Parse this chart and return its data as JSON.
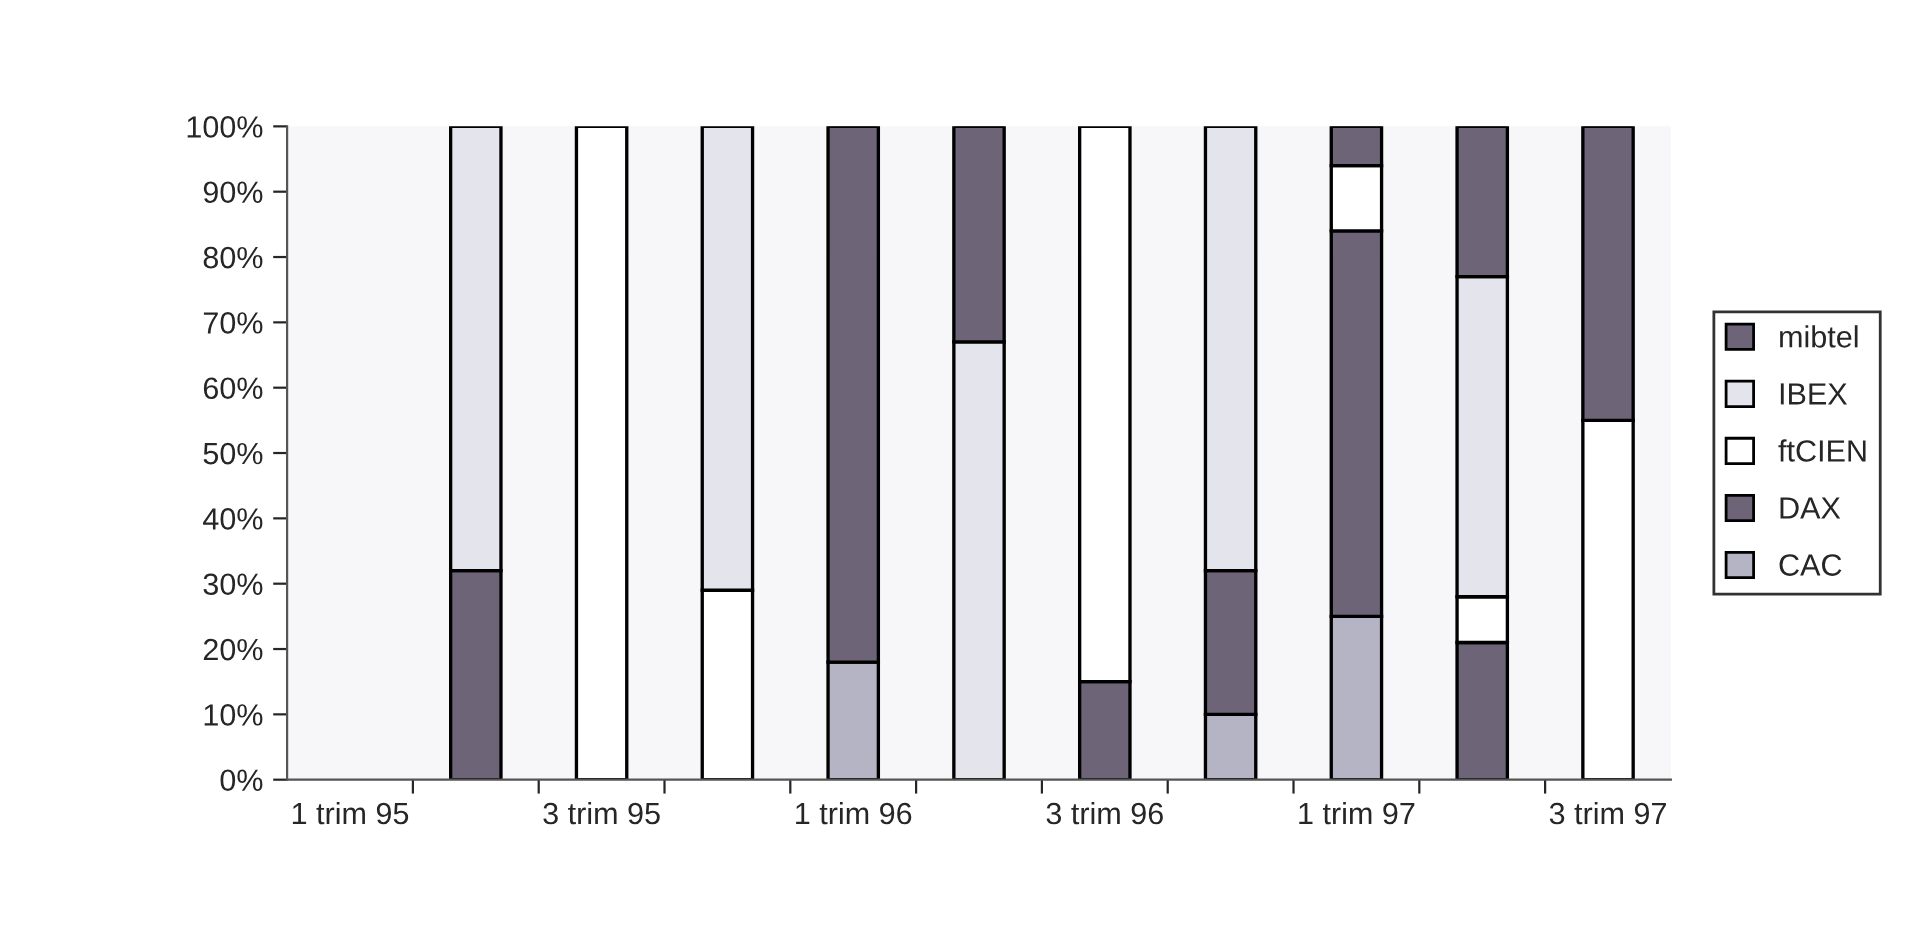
{
  "chart_data": {
    "type": "bar",
    "stacked": true,
    "categories": [
      "1 trim 95",
      null,
      "3 trim 95",
      null,
      "1 trim 96",
      null,
      "3 trim 96",
      null,
      "1 trim 97",
      null,
      "3 trim 97"
    ],
    "series": [
      {
        "name": "CAC",
        "color": "#b4b4c4",
        "values": [
          null,
          null,
          null,
          null,
          18,
          null,
          null,
          10,
          25,
          null,
          null
        ]
      },
      {
        "name": "DAX",
        "color": "#6e6478",
        "values": [
          null,
          32,
          null,
          null,
          82,
          null,
          15,
          22,
          59,
          21,
          null
        ]
      },
      {
        "name": "ftCIEN",
        "color": "#ffffff",
        "values": [
          null,
          null,
          100,
          29,
          null,
          null,
          85,
          null,
          10,
          7,
          55
        ]
      },
      {
        "name": "IBEX",
        "color": "#e4e4ec",
        "values": [
          null,
          68,
          null,
          71,
          null,
          67,
          null,
          68,
          null,
          49,
          null
        ]
      },
      {
        "name": "mibtel",
        "color": "#6e6478",
        "values": [
          null,
          null,
          null,
          null,
          null,
          33,
          null,
          null,
          6,
          23,
          45
        ]
      }
    ],
    "ylim": [
      0,
      100
    ],
    "yticks": [
      {
        "value": 0,
        "label": "0%"
      },
      {
        "value": 10,
        "label": "10%"
      },
      {
        "value": 20,
        "label": "20%"
      },
      {
        "value": 30,
        "label": "30%"
      },
      {
        "value": 40,
        "label": "40%"
      },
      {
        "value": 50,
        "label": "50%"
      },
      {
        "value": 60,
        "label": "60%"
      },
      {
        "value": 70,
        "label": "70%"
      },
      {
        "value": 80,
        "label": "80%"
      },
      {
        "value": 90,
        "label": "90%"
      },
      {
        "value": 100,
        "label": "100%"
      }
    ],
    "legend": "right"
  }
}
